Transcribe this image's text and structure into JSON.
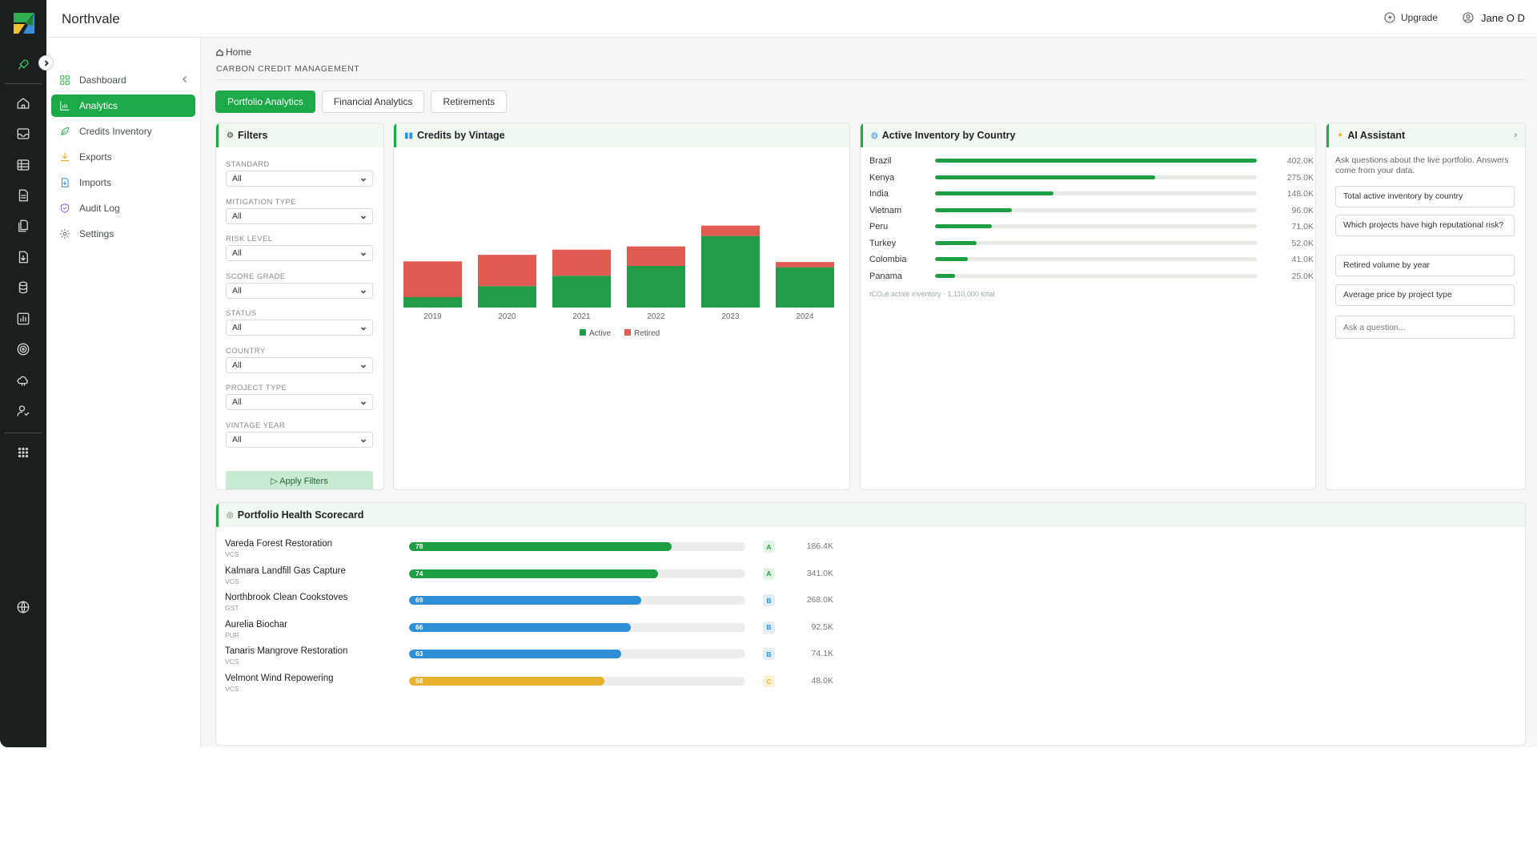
{
  "app": {
    "brand": "Northvale"
  },
  "topbar": {
    "upgrade_label": "Upgrade",
    "user_name": "Jane O D"
  },
  "menu": {
    "items": [
      {
        "label": "Dashboard",
        "icon": "grid-icon"
      },
      {
        "label": "Analytics",
        "icon": "bar-chart-icon"
      },
      {
        "label": "Credits Inventory",
        "icon": "leaf-icon"
      },
      {
        "label": "Exports",
        "icon": "download-icon"
      },
      {
        "label": "Imports",
        "icon": "import-icon"
      },
      {
        "label": "Audit Log",
        "icon": "shield-icon"
      },
      {
        "label": "Settings",
        "icon": "gear-icon"
      }
    ]
  },
  "breadcrumb": {
    "home": "Home"
  },
  "page": {
    "title": "CARBON CREDIT MANAGEMENT"
  },
  "tabs": [
    "Portfolio Analytics",
    "Financial Analytics",
    "Retirements"
  ],
  "filters": {
    "title": "Filters",
    "fields": [
      {
        "label": "STANDARD",
        "value": "All"
      },
      {
        "label": "MITIGATION TYPE",
        "value": "All"
      },
      {
        "label": "RISK LEVEL",
        "value": "All"
      },
      {
        "label": "SCORE GRADE",
        "value": "All"
      },
      {
        "label": "STATUS",
        "value": "All"
      },
      {
        "label": "COUNTRY",
        "value": "All"
      },
      {
        "label": "PROJECT TYPE",
        "value": "All"
      },
      {
        "label": "VINTAGE YEAR",
        "value": "All"
      }
    ],
    "apply_label": "▷ Apply Filters"
  },
  "vintage": {
    "title": "Credits by Vintage",
    "legend": {
      "active": "Active",
      "retired": "Retired"
    }
  },
  "chart_data": {
    "type": "bar",
    "stacked": true,
    "categories": [
      "2019",
      "2020",
      "2021",
      "2022",
      "2023",
      "2024"
    ],
    "series": [
      {
        "name": "Active",
        "values": [
          16,
          33,
          49,
          64,
          110,
          62
        ],
        "color": "#229c48"
      },
      {
        "name": "Retired",
        "values": [
          55,
          48,
          40,
          30,
          16,
          8
        ],
        "color": "#e05b52"
      }
    ],
    "ylim": [
      0,
      160
    ],
    "grid": false,
    "legend_position": "bottom"
  },
  "country": {
    "title": "Active Inventory by Country",
    "max": 402000,
    "rows": [
      {
        "name": "Brazil",
        "value": 402000,
        "label": "402.0K"
      },
      {
        "name": "Kenya",
        "value": 275000,
        "label": "275.0K"
      },
      {
        "name": "India",
        "value": 148000,
        "label": "148.0K"
      },
      {
        "name": "Vietnam",
        "value": 96000,
        "label": "96.0K"
      },
      {
        "name": "Peru",
        "value": 71000,
        "label": "71.0K"
      },
      {
        "name": "Turkey",
        "value": 52000,
        "label": "52.0K"
      },
      {
        "name": "Colombia",
        "value": 41000,
        "label": "41.0K"
      },
      {
        "name": "Panama",
        "value": 25000,
        "label": "25.0K"
      }
    ],
    "note": "tCO₂e active inventory · 1,110,000 total"
  },
  "ai": {
    "title": "AI Assistant",
    "description": "Ask questions about the live portfolio. Answers come from your data.",
    "suggestions": [
      "Total active inventory by country",
      "Which projects have high reputational risk?",
      "Retired volume by year",
      "Average price by project type"
    ],
    "input_placeholder": "Ask a question..."
  },
  "scorecard": {
    "title": "Portfolio Health Scorecard",
    "rows": [
      {
        "name": "Vareda Forest Restoration",
        "standard": "VCS",
        "score": 78,
        "grade": "A",
        "volume": "186.4K"
      },
      {
        "name": "Kalmara Landfill Gas Capture",
        "standard": "VCS",
        "score": 74,
        "grade": "A",
        "volume": "341.0K"
      },
      {
        "name": "Northbrook Clean Cookstoves",
        "standard": "GST",
        "score": 69,
        "grade": "B",
        "volume": "268.0K"
      },
      {
        "name": "Aurelia Biochar",
        "standard": "PUR",
        "score": 66,
        "grade": "B",
        "volume": "92.5K"
      },
      {
        "name": "Tanaris Mangrove Restoration",
        "standard": "VCS",
        "score": 63,
        "grade": "B",
        "volume": "74.1K"
      },
      {
        "name": "Velmont Wind Repowering",
        "standard": "VCS",
        "score": 58,
        "grade": "C",
        "volume": "48.0K"
      }
    ]
  },
  "colors": {
    "accent": "#1ea948",
    "grade_a": "#1e9e43",
    "grade_b": "#2f8fd6",
    "grade_c": "#e6b22e"
  }
}
